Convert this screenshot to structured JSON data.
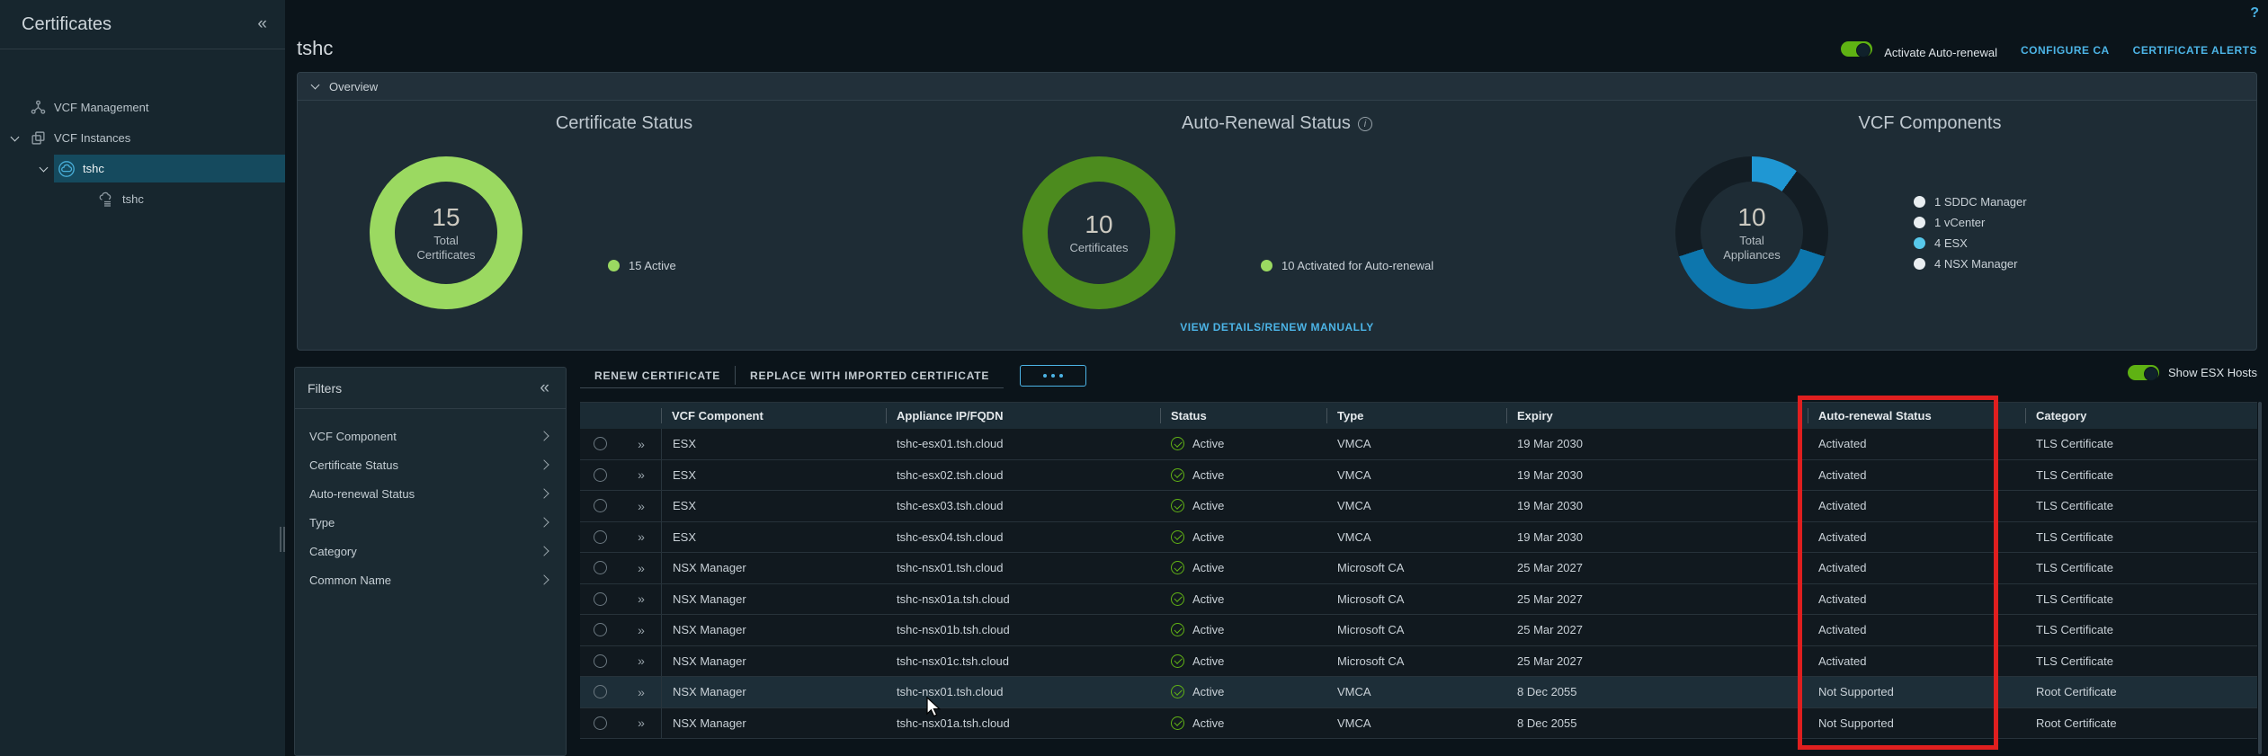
{
  "icons": {
    "sidebar_collapse": "«",
    "filters_collapse": "«",
    "row_expand": "»",
    "help": "?",
    "info": "i"
  },
  "sidebar": {
    "title": "Certificates",
    "tree": [
      {
        "label": "VCF Management",
        "icon": "network-icon",
        "indent": 1,
        "caret": false,
        "selected": false
      },
      {
        "label": "VCF Instances",
        "icon": "instances-icon",
        "indent": 1,
        "caret": true,
        "selected": false
      },
      {
        "label": "tshc",
        "icon": "cloud-circle-icon",
        "indent": 2,
        "caret": true,
        "selected": true
      },
      {
        "label": "tshc",
        "icon": "cloud-list-icon",
        "indent": 3,
        "caret": false,
        "selected": false
      }
    ]
  },
  "header": {
    "page_title": "tshc",
    "toggle_label": "Activate Auto-renewal",
    "toggle_on": true,
    "links": [
      "CONFIGURE CA",
      "CERTIFICATE ALERTS"
    ]
  },
  "overview": {
    "section_label": "Overview"
  },
  "chart_data": [
    {
      "type": "donut",
      "title": "Certificate Status",
      "center_value": "15",
      "center_label": "Total Certificates",
      "total": 15,
      "segments": [
        {
          "label": "Active",
          "value": 15,
          "color": "#9bd961"
        }
      ],
      "legend": [
        {
          "label": "15 Active",
          "color": "#9bd961"
        }
      ]
    },
    {
      "type": "donut",
      "title": "Auto-Renewal Status",
      "has_info_icon": true,
      "center_value": "10",
      "center_label": "Certificates",
      "total": 10,
      "segments": [
        {
          "label": "Activated for Auto-renewal",
          "value": 10,
          "color": "#4c8b1e"
        }
      ],
      "legend": [
        {
          "label": "10 Activated for Auto-renewal",
          "color": "#9bd961"
        }
      ],
      "footer_link": "VIEW DETAILS/RENEW MANUALLY"
    },
    {
      "type": "donut",
      "title": "VCF Components",
      "center_value": "10",
      "center_label": "Total Appliances",
      "total": 10,
      "counts": {
        "SDDC Manager": 1,
        "vCenter": 1,
        "ESX": 4,
        "NSX Manager": 4
      },
      "visual_segments": [
        {
          "value": 1,
          "color": "#1f97d3"
        },
        {
          "value": 2,
          "color": "#131d24"
        },
        {
          "value": 4,
          "color": "#0d76ad"
        },
        {
          "value": 3,
          "color": "#131d24"
        }
      ],
      "segments": [
        {
          "label": "SDDC Manager",
          "value": 1,
          "color": "#e9eef1"
        },
        {
          "label": "vCenter",
          "value": 1,
          "color": "#e9eef1"
        },
        {
          "label": "ESX",
          "value": 4,
          "color": "#57c8ea"
        },
        {
          "label": "NSX Manager",
          "value": 4,
          "color": "#e9eef1"
        }
      ],
      "legend": [
        {
          "label": "1 SDDC Manager",
          "color": "#e9eef1"
        },
        {
          "label": "1 vCenter",
          "color": "#e9eef1"
        },
        {
          "label": "4 ESX",
          "color": "#57c8ea"
        },
        {
          "label": "4 NSX Manager",
          "color": "#e9eef1"
        }
      ]
    }
  ],
  "filters": {
    "title": "Filters",
    "items": [
      "VCF Component",
      "Certificate Status",
      "Auto-renewal Status",
      "Type",
      "Category",
      "Common Name"
    ]
  },
  "toolbar": {
    "actions": [
      "RENEW CERTIFICATE",
      "REPLACE WITH IMPORTED CERTIFICATE"
    ],
    "show_esx_label": "Show ESX Hosts",
    "show_esx_on": true
  },
  "table": {
    "columns": [
      "VCF Component",
      "Appliance IP/FQDN",
      "Status",
      "Type",
      "Expiry",
      "Auto-renewal Status",
      "Category"
    ],
    "rows": [
      {
        "component": "ESX",
        "fqdn": "tshc-esx01.tsh.cloud",
        "status": "Active",
        "type": "VMCA",
        "expiry": "19 Mar 2030",
        "auto_renewal": "Activated",
        "category": "TLS Certificate",
        "hover": false
      },
      {
        "component": "ESX",
        "fqdn": "tshc-esx02.tsh.cloud",
        "status": "Active",
        "type": "VMCA",
        "expiry": "19 Mar 2030",
        "auto_renewal": "Activated",
        "category": "TLS Certificate",
        "hover": false
      },
      {
        "component": "ESX",
        "fqdn": "tshc-esx03.tsh.cloud",
        "status": "Active",
        "type": "VMCA",
        "expiry": "19 Mar 2030",
        "auto_renewal": "Activated",
        "category": "TLS Certificate",
        "hover": false
      },
      {
        "component": "ESX",
        "fqdn": "tshc-esx04.tsh.cloud",
        "status": "Active",
        "type": "VMCA",
        "expiry": "19 Mar 2030",
        "auto_renewal": "Activated",
        "category": "TLS Certificate",
        "hover": false
      },
      {
        "component": "NSX Manager",
        "fqdn": "tshc-nsx01.tsh.cloud",
        "status": "Active",
        "type": "Microsoft CA",
        "expiry": "25 Mar 2027",
        "auto_renewal": "Activated",
        "category": "TLS Certificate",
        "hover": false
      },
      {
        "component": "NSX Manager",
        "fqdn": "tshc-nsx01a.tsh.cloud",
        "status": "Active",
        "type": "Microsoft CA",
        "expiry": "25 Mar 2027",
        "auto_renewal": "Activated",
        "category": "TLS Certificate",
        "hover": false
      },
      {
        "component": "NSX Manager",
        "fqdn": "tshc-nsx01b.tsh.cloud",
        "status": "Active",
        "type": "Microsoft CA",
        "expiry": "25 Mar 2027",
        "auto_renewal": "Activated",
        "category": "TLS Certificate",
        "hover": false
      },
      {
        "component": "NSX Manager",
        "fqdn": "tshc-nsx01c.tsh.cloud",
        "status": "Active",
        "type": "Microsoft CA",
        "expiry": "25 Mar 2027",
        "auto_renewal": "Activated",
        "category": "TLS Certificate",
        "hover": false
      },
      {
        "component": "NSX Manager",
        "fqdn": "tshc-nsx01.tsh.cloud",
        "status": "Active",
        "type": "VMCA",
        "expiry": "8 Dec 2055",
        "auto_renewal": "Not Supported",
        "category": "Root Certificate",
        "hover": true
      },
      {
        "component": "NSX Manager",
        "fqdn": "tshc-nsx01a.tsh.cloud",
        "status": "Active",
        "type": "VMCA",
        "expiry": "8 Dec 2055",
        "auto_renewal": "Not Supported",
        "category": "Root Certificate",
        "hover": false
      }
    ]
  },
  "annotation": {
    "note": "red box highlighting the Auto-renewal Status column",
    "color": "#e01f1f"
  }
}
